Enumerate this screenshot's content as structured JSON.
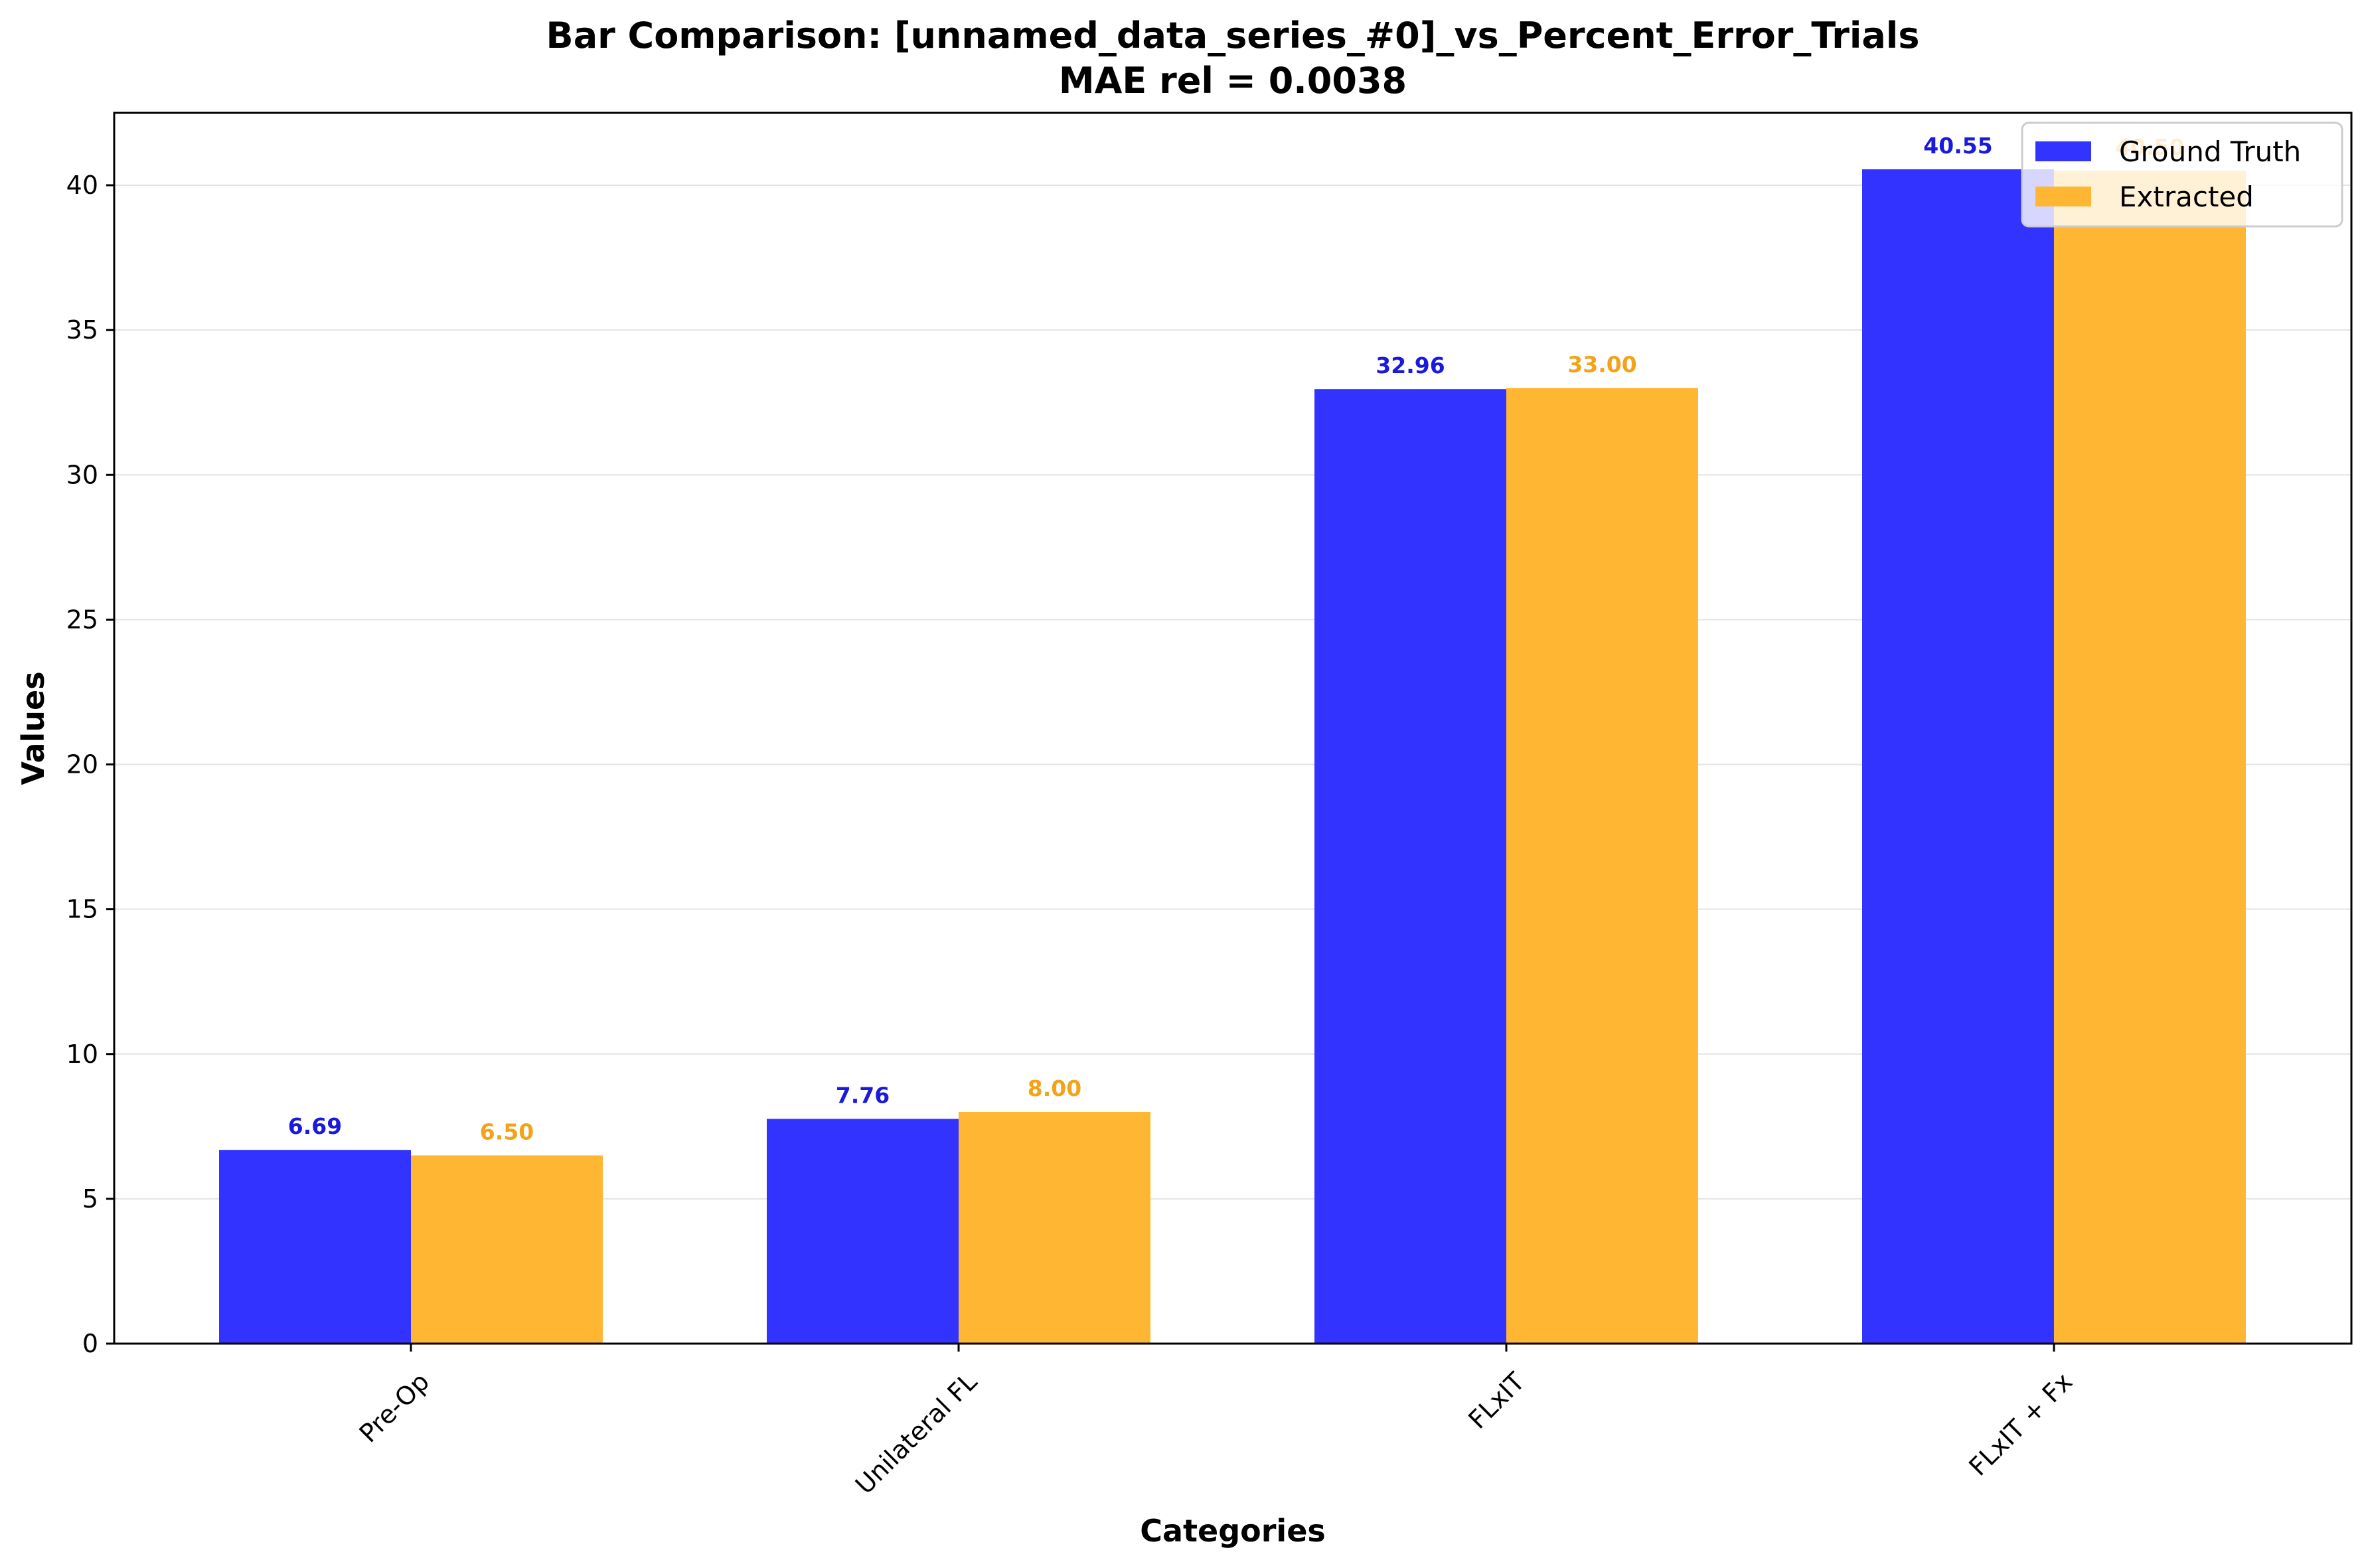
{
  "chart_data": {
    "type": "bar",
    "title": "Bar Comparison: [unnamed_data_series_#0]_vs_Percent_Error_Trials",
    "subtitle": "MAE rel = 0.0038",
    "xlabel": "Categories",
    "ylabel": "Values",
    "categories": [
      "Pre-Op",
      "Unilateral FL",
      "FLxIT",
      "FLxIT + Fx"
    ],
    "series": [
      {
        "name": "Ground Truth",
        "color": "#3333ff",
        "label_color": "#1a1adb",
        "values": [
          6.69,
          7.76,
          32.96,
          40.55
        ],
        "labels": [
          "6.69",
          "7.76",
          "32.96",
          "40.55"
        ]
      },
      {
        "name": "Extracted",
        "color": "#ffb733",
        "label_color": "#f2a31a",
        "values": [
          6.5,
          8.0,
          33.0,
          40.5
        ],
        "labels": [
          "6.50",
          "8.00",
          "33.00",
          "40.50"
        ]
      }
    ],
    "ylim": [
      0,
      42.5
    ],
    "yticks": [
      0,
      5,
      10,
      15,
      20,
      25,
      30,
      35,
      40
    ],
    "grid": true,
    "legend_position": "top-right"
  }
}
